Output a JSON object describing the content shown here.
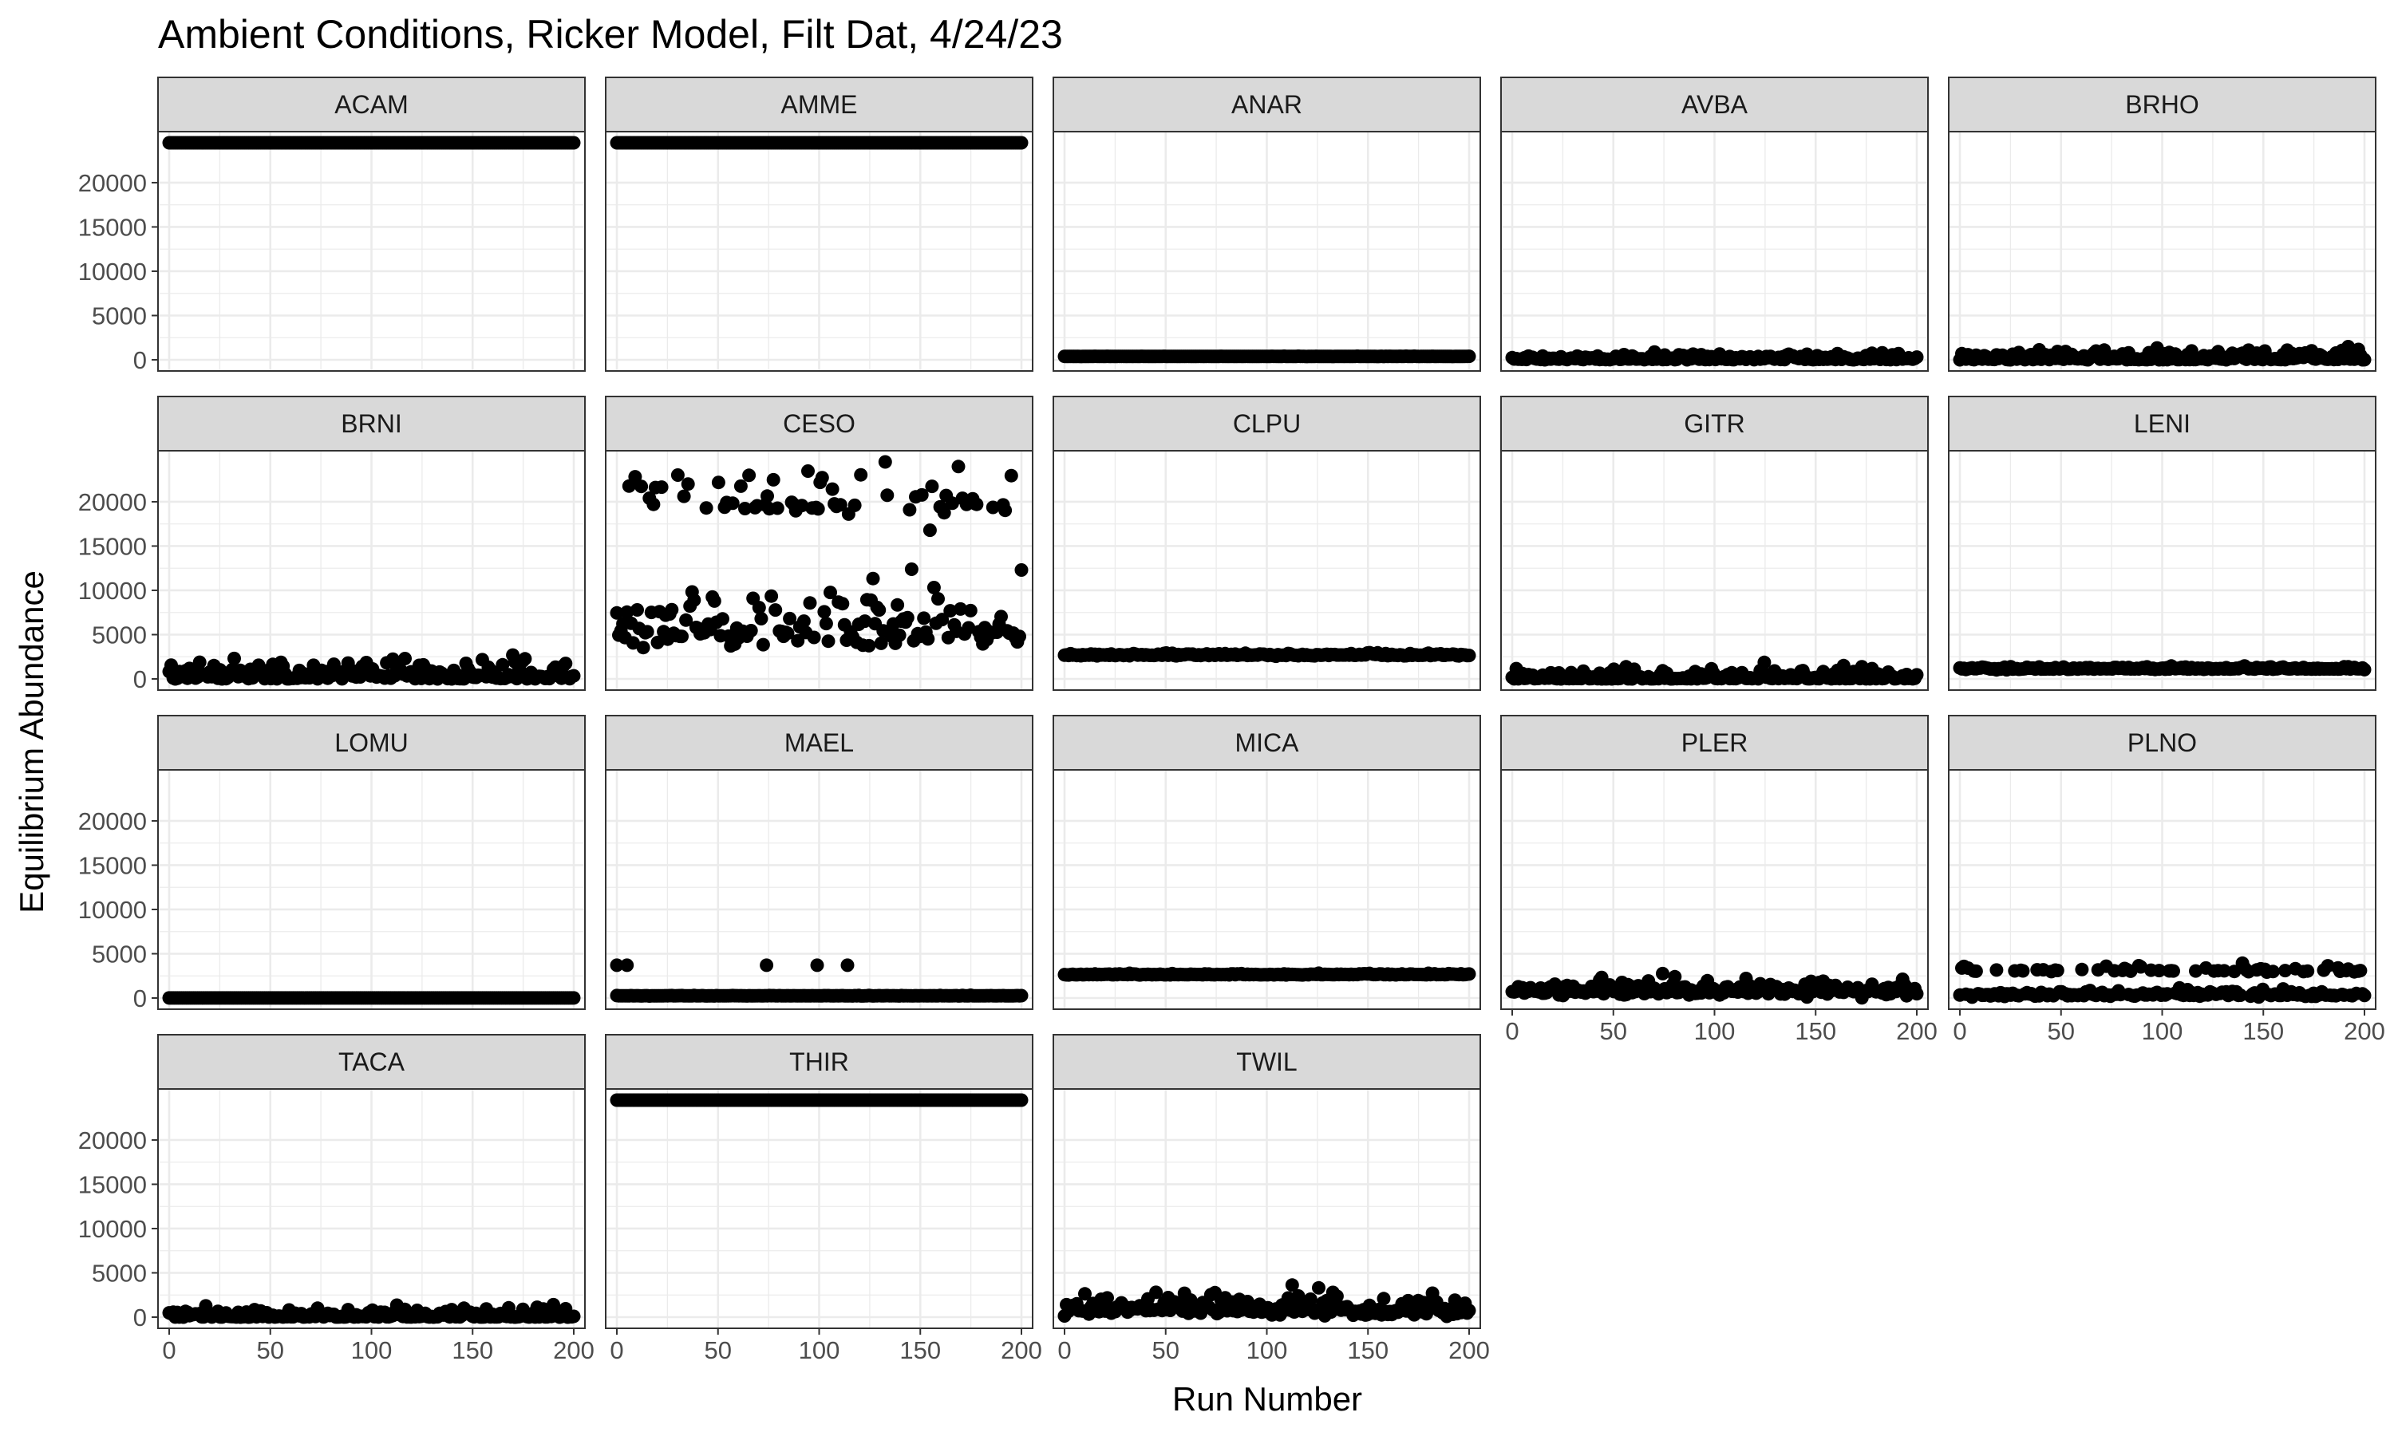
{
  "chart_data": {
    "type": "scatter",
    "title": "Ambient Conditions, Ricker Model, Filt Dat, 4/24/23",
    "xlabel": "Run Number",
    "ylabel": "Equilibrium Abundance",
    "xlim": [
      0,
      200
    ],
    "ylim": [
      0,
      24500
    ],
    "x_ticks": [
      0,
      50,
      100,
      150,
      200
    ],
    "y_ticks": [
      0,
      5000,
      10000,
      15000,
      20000
    ],
    "x_tick_labels": [
      "0",
      "50",
      "100",
      "150",
      "200"
    ],
    "y_tick_labels": [
      "0",
      "5000",
      "10000",
      "15000",
      "20000"
    ],
    "facet_columns": 5,
    "grid": true,
    "point_color": "#000000",
    "points_per_panel": 200,
    "panels": [
      {
        "name": "ACAM",
        "levels": [
          24500
        ],
        "spread": 0,
        "outliers": []
      },
      {
        "name": "AMME",
        "levels": [
          24500
        ],
        "spread": 0,
        "outliers": []
      },
      {
        "name": "ANAR",
        "levels": [
          380
        ],
        "spread": 10,
        "outliers": []
      },
      {
        "name": "AVBA",
        "levels": [
          130
        ],
        "spread": 300,
        "outliers": []
      },
      {
        "name": "BRHO",
        "levels": [
          180
        ],
        "spread": 600,
        "outliers": []
      },
      {
        "name": "BRNI",
        "levels": [
          400
        ],
        "spread": 1100,
        "outliers": []
      },
      {
        "name": "CESO",
        "levels": [
          5500,
          20000
        ],
        "level_weights": [
          0.75,
          0.25
        ],
        "spread": 3000,
        "outliers": []
      },
      {
        "name": "CLPU",
        "levels": [
          2700
        ],
        "spread": 130,
        "outliers": []
      },
      {
        "name": "GITR",
        "levels": [
          80
        ],
        "spread": 700,
        "outliers": []
      },
      {
        "name": "LENI",
        "levels": [
          1150
        ],
        "spread": 130,
        "outliers": []
      },
      {
        "name": "LOMU",
        "levels": [
          10
        ],
        "spread": 0,
        "outliers": []
      },
      {
        "name": "MAEL",
        "levels": [
          250
        ],
        "spread": 20,
        "outliers": [
          [
            0,
            3700
          ],
          [
            5,
            3700
          ],
          [
            74,
            3700
          ],
          [
            99,
            3700
          ],
          [
            114,
            3700
          ]
        ]
      },
      {
        "name": "MICA",
        "levels": [
          2650
        ],
        "spread": 60,
        "outliers": []
      },
      {
        "name": "PLER",
        "levels": [
          800
        ],
        "spread": 700,
        "outliers": []
      },
      {
        "name": "PLNO",
        "levels": [
          350,
          3100
        ],
        "level_weights": [
          0.75,
          0.25
        ],
        "spread": 300,
        "outliers": []
      },
      {
        "name": "TACA",
        "levels": [
          100
        ],
        "spread": 500,
        "outliers": []
      },
      {
        "name": "THIR",
        "levels": [
          24500
        ],
        "spread": 0,
        "outliers": []
      },
      {
        "name": "TWIL",
        "levels": [
          900
        ],
        "spread": 1100,
        "outliers": []
      }
    ]
  }
}
